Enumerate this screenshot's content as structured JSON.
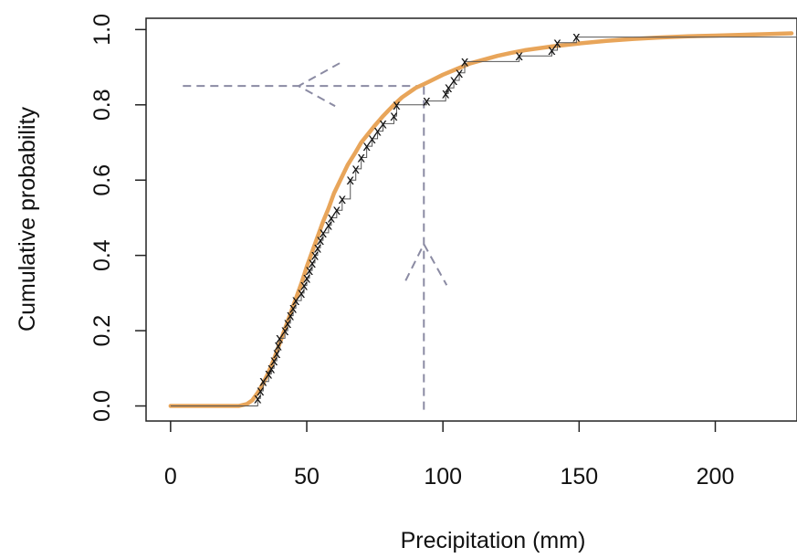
{
  "chart_data": {
    "type": "line",
    "title": "",
    "xlabel": "Precipitation (mm)",
    "ylabel": "Cumulative probability",
    "xlim": [
      -9,
      230
    ],
    "ylim": [
      -0.04,
      1.03
    ],
    "xticks": [
      0,
      50,
      100,
      150,
      200
    ],
    "xtick_labels": [
      "0",
      "50",
      "100",
      "150",
      "200"
    ],
    "yticks": [
      0.0,
      0.2,
      0.4,
      0.6,
      0.8,
      1.0
    ],
    "ytick_labels": [
      "0.0",
      "0.2",
      "0.4",
      "0.6",
      "0.8",
      "1.0"
    ],
    "grid": false,
    "series": [
      {
        "type": "line",
        "color": "#E8A55A",
        "x": [
          0,
          10,
          20,
          25,
          28,
          30,
          32,
          34,
          36,
          38,
          40,
          42,
          44,
          46,
          48,
          50,
          52,
          54,
          56,
          58,
          60,
          62,
          65,
          68,
          70,
          72,
          75,
          78,
          80,
          82,
          85,
          88,
          90,
          93,
          95,
          100,
          105,
          110,
          115,
          120,
          125,
          130,
          140,
          150,
          160,
          170,
          180,
          190,
          200,
          210,
          220,
          228
        ],
        "y": [
          0.0,
          0.0,
          0.0,
          0.0,
          0.005,
          0.015,
          0.035,
          0.06,
          0.09,
          0.125,
          0.165,
          0.205,
          0.245,
          0.285,
          0.325,
          0.37,
          0.41,
          0.45,
          0.49,
          0.525,
          0.565,
          0.595,
          0.64,
          0.675,
          0.7,
          0.718,
          0.745,
          0.77,
          0.785,
          0.8,
          0.82,
          0.835,
          0.845,
          0.855,
          0.862,
          0.88,
          0.895,
          0.91,
          0.92,
          0.93,
          0.938,
          0.945,
          0.955,
          0.963,
          0.97,
          0.975,
          0.979,
          0.982,
          0.984,
          0.986,
          0.988,
          0.99
        ]
      },
      {
        "type": "step",
        "color": "#555555",
        "x": [
          0,
          32,
          33,
          34,
          36,
          37,
          38,
          39,
          39.5,
          40,
          42,
          43,
          44,
          45,
          46,
          48,
          49,
          50,
          51,
          52,
          53,
          54,
          55,
          56,
          58,
          59,
          61,
          63,
          66,
          68,
          70,
          72,
          74,
          76,
          78,
          82,
          83,
          94,
          101,
          102,
          104,
          106,
          108,
          128,
          140,
          142,
          149,
          230
        ],
        "y": [
          0.0,
          0.02,
          0.04,
          0.065,
          0.085,
          0.1,
          0.12,
          0.14,
          0.16,
          0.18,
          0.2,
          0.22,
          0.24,
          0.26,
          0.28,
          0.3,
          0.32,
          0.34,
          0.36,
          0.38,
          0.4,
          0.42,
          0.44,
          0.46,
          0.48,
          0.5,
          0.52,
          0.55,
          0.6,
          0.63,
          0.66,
          0.69,
          0.71,
          0.73,
          0.75,
          0.77,
          0.8,
          0.81,
          0.83,
          0.845,
          0.865,
          0.885,
          0.915,
          0.93,
          0.945,
          0.965,
          0.98,
          0.985
        ]
      },
      {
        "type": "scatter",
        "marker": "x",
        "color": "#111111",
        "x": [
          32,
          33,
          34,
          36,
          37,
          38,
          39,
          39.5,
          40,
          42,
          43,
          44,
          45,
          46,
          48,
          49,
          50,
          51,
          52,
          53,
          54,
          55,
          56,
          58,
          59,
          61,
          63,
          66,
          68,
          70,
          72,
          74,
          76,
          78,
          82,
          83,
          94,
          101,
          102,
          104,
          106,
          108,
          128,
          140,
          142,
          149
        ],
        "y": [
          0.02,
          0.04,
          0.065,
          0.085,
          0.1,
          0.12,
          0.14,
          0.16,
          0.18,
          0.2,
          0.22,
          0.24,
          0.26,
          0.28,
          0.3,
          0.32,
          0.34,
          0.36,
          0.38,
          0.4,
          0.42,
          0.44,
          0.46,
          0.48,
          0.5,
          0.52,
          0.55,
          0.6,
          0.63,
          0.66,
          0.69,
          0.71,
          0.73,
          0.75,
          0.77,
          0.8,
          0.81,
          0.83,
          0.845,
          0.865,
          0.885,
          0.915,
          0.93,
          0.945,
          0.965,
          0.98
        ]
      }
    ],
    "annotations": {
      "color": "#8B8BA3",
      "vertical_guide": {
        "x": 93,
        "y_from": -0.01,
        "y_to": 0.85,
        "arrow": "up",
        "arrow_at_y": 0.43
      },
      "horizontal_guide": {
        "y": 0.85,
        "x_from": 93,
        "x_to": 3,
        "arrow": "left",
        "arrow_at_x": 47
      }
    }
  }
}
